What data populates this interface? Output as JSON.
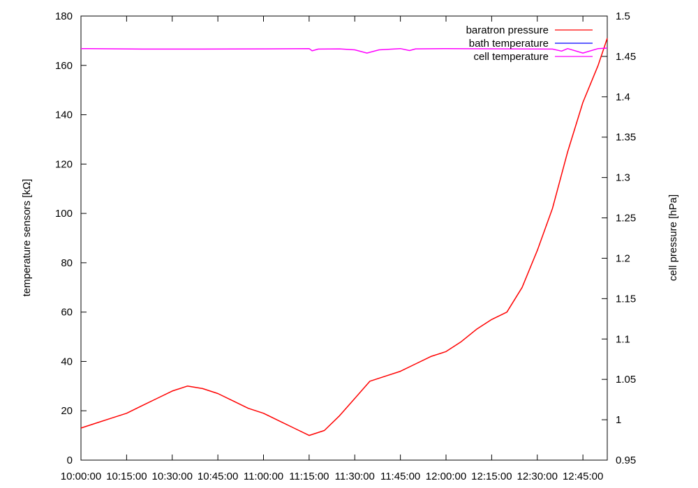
{
  "chart_data": {
    "type": "line",
    "title": "",
    "ylabel": "temperature sensors [kΩ]",
    "y2label": "cell pressure [hPa]",
    "xlim": [
      "10:00:00",
      "12:53:00"
    ],
    "ylim": [
      0,
      180
    ],
    "y2lim": [
      0.95,
      1.5
    ],
    "grid": false,
    "legend_position": "top-right",
    "x_tick_labels": [
      "10:00:00",
      "10:15:00",
      "10:30:00",
      "10:45:00",
      "11:00:00",
      "11:15:00",
      "11:30:00",
      "11:45:00",
      "12:00:00",
      "12:15:00",
      "12:30:00",
      "12:45:00"
    ],
    "y_tick_labels": [
      "0",
      "20",
      "40",
      "60",
      "80",
      "100",
      "120",
      "140",
      "160",
      "180"
    ],
    "y2_tick_labels": [
      "0.95",
      "1",
      "1.05",
      "1.1",
      "1.15",
      "1.2",
      "1.25",
      "1.3",
      "1.35",
      "1.4",
      "1.45",
      "1.5"
    ],
    "series": [
      {
        "name": "baratron pressure",
        "color": "#ff0000",
        "axis": "y",
        "x": [
          "10:00:00",
          "10:05:00",
          "10:10:00",
          "10:15:00",
          "10:20:00",
          "10:25:00",
          "10:30:00",
          "10:35:00",
          "10:40:00",
          "10:45:00",
          "10:50:00",
          "10:55:00",
          "11:00:00",
          "11:05:00",
          "11:10:00",
          "11:15:00",
          "11:20:00",
          "11:25:00",
          "11:30:00",
          "11:35:00",
          "11:40:00",
          "11:45:00",
          "11:50:00",
          "11:55:00",
          "12:00:00",
          "12:05:00",
          "12:10:00",
          "12:15:00",
          "12:20:00",
          "12:25:00",
          "12:30:00",
          "12:35:00",
          "12:40:00",
          "12:45:00",
          "12:50:00",
          "12:53:00"
        ],
        "values": [
          13,
          15,
          17,
          19,
          22,
          25,
          28,
          30,
          29,
          27,
          24,
          21,
          19,
          16,
          13,
          10,
          12,
          18,
          25,
          32,
          34,
          36,
          39,
          42,
          44,
          48,
          53,
          57,
          60,
          70,
          85,
          102,
          125,
          145,
          160,
          171
        ]
      },
      {
        "name": "bath temperature",
        "color": "#0000ff",
        "axis": "y",
        "x": [],
        "values": []
      },
      {
        "name": "cell temperature",
        "color": "#ff00ff",
        "axis": "y",
        "x": [
          "10:00:00",
          "10:20:00",
          "10:40:00",
          "11:00:00",
          "11:15:00",
          "11:16:00",
          "11:18:00",
          "11:25:00",
          "11:30:00",
          "11:34:00",
          "11:38:00",
          "11:45:00",
          "11:48:00",
          "11:50:00",
          "12:00:00",
          "12:20:00",
          "12:35:00",
          "12:38:00",
          "12:40:00",
          "12:45:00",
          "12:50:00",
          "12:53:00"
        ],
        "values": [
          166.8,
          166.6,
          166.6,
          166.7,
          166.8,
          165.9,
          166.6,
          166.7,
          166.3,
          165.0,
          166.3,
          166.8,
          166.0,
          166.7,
          166.8,
          166.7,
          166.6,
          165.8,
          166.8,
          165.0,
          166.8,
          167.0
        ]
      }
    ]
  }
}
